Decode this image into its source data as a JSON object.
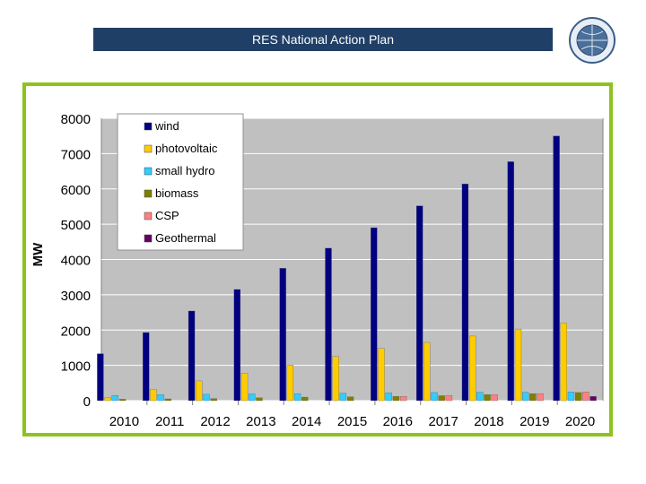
{
  "slide": {
    "title": "RES National Action Plan",
    "logo_icon": "circular-emblem-logo"
  },
  "colors": {
    "title_bg": "#1f3f66",
    "frame_border": "#8dc21f",
    "plot_bg": "#c0c0c0"
  },
  "chart_data": {
    "type": "bar",
    "title": "",
    "xlabel": "",
    "ylabel": "MW",
    "ylim": [
      0,
      8000
    ],
    "yticks": [
      "0",
      "1000",
      "2000",
      "3000",
      "4000",
      "5000",
      "6000",
      "7000",
      "8000"
    ],
    "grid": true,
    "legend_position": "top-left",
    "categories": [
      "2010",
      "2011",
      "2012",
      "2013",
      "2014",
      "2015",
      "2016",
      "2017",
      "2018",
      "2019",
      "2020"
    ],
    "series": [
      {
        "name": "wind",
        "color": "#000080",
        "values": [
          1330,
          1930,
          2540,
          3150,
          3750,
          4320,
          4900,
          5520,
          6140,
          6770,
          7500
        ]
      },
      {
        "name": "photovoltaic",
        "color": "#ffcc00",
        "values": [
          80,
          320,
          560,
          780,
          1010,
          1250,
          1480,
          1650,
          1830,
          2030,
          2200
        ]
      },
      {
        "name": "small hydro",
        "color": "#33ccff",
        "values": [
          150,
          170,
          180,
          190,
          200,
          210,
          220,
          230,
          240,
          240,
          250
        ]
      },
      {
        "name": "biomass",
        "color": "#808000",
        "values": [
          40,
          50,
          60,
          80,
          100,
          110,
          120,
          140,
          170,
          200,
          230
        ]
      },
      {
        "name": "CSP",
        "color": "#ff8080",
        "values": [
          0,
          0,
          0,
          0,
          0,
          0,
          120,
          150,
          170,
          200,
          250
        ]
      },
      {
        "name": "Geothermal",
        "color": "#660066",
        "values": [
          0,
          0,
          0,
          0,
          0,
          0,
          0,
          0,
          0,
          0,
          120
        ]
      }
    ]
  }
}
